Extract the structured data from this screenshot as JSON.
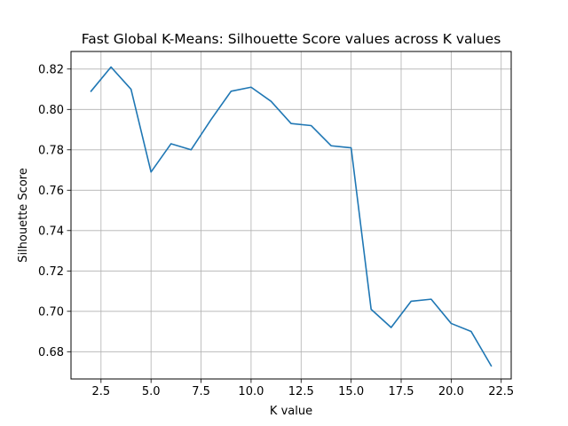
{
  "chart_data": {
    "type": "line",
    "title": "Fast Global K-Means: Silhouette Score values across K values",
    "xlabel": "K value",
    "ylabel": "Silhouette Score",
    "xlim": [
      1.0,
      23.0
    ],
    "ylim": [
      0.6665,
      0.8287
    ],
    "xticks": [
      2.5,
      5.0,
      7.5,
      10.0,
      12.5,
      15.0,
      17.5,
      20.0,
      22.5
    ],
    "xtick_labels": [
      "2.5",
      "5.0",
      "7.5",
      "10.0",
      "12.5",
      "15.0",
      "17.5",
      "20.0",
      "22.5"
    ],
    "yticks": [
      0.68,
      0.7,
      0.72,
      0.74,
      0.76,
      0.78,
      0.8,
      0.82
    ],
    "ytick_labels": [
      "0.68",
      "0.70",
      "0.72",
      "0.74",
      "0.76",
      "0.78",
      "0.80",
      "0.82"
    ],
    "grid": true,
    "series": [
      {
        "color": "#1f77b4",
        "x": [
          2,
          3,
          4,
          5,
          6,
          7,
          8,
          9,
          10,
          11,
          12,
          13,
          14,
          15,
          16,
          17,
          18,
          19,
          20,
          21,
          22
        ],
        "values": [
          0.809,
          0.821,
          0.81,
          0.769,
          0.783,
          0.78,
          0.795,
          0.809,
          0.811,
          0.804,
          0.793,
          0.792,
          0.782,
          0.781,
          0.701,
          0.692,
          0.705,
          0.706,
          0.694,
          0.69,
          0.673
        ]
      }
    ]
  }
}
